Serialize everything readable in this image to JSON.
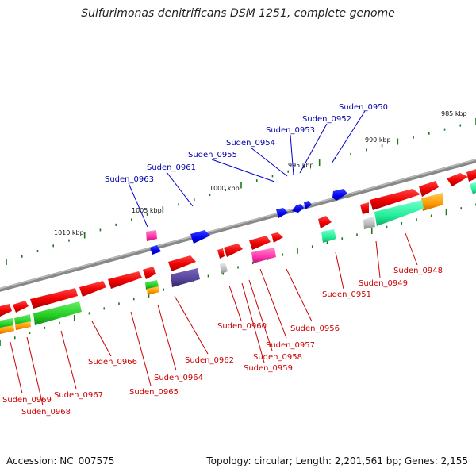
{
  "title": "Sulfurimonas denitrificans DSM 1251, complete genome",
  "footer": {
    "accession": "Accession: NC_007575",
    "summary": "Topology: circular; Length: 2,201,561 bp; Genes: 2,155"
  },
  "scale_labels": [
    "985 kbp",
    "990 kbp",
    "995 kbp",
    "1000 kbp",
    "1005 kbp",
    "1010 kbp"
  ],
  "top_gene_labels": [
    "Suden_0950",
    "Suden_0952",
    "Suden_0953",
    "Suden_0954",
    "Suden_0955",
    "Suden_0961",
    "Suden_0963"
  ],
  "bottom_gene_labels": [
    "Suden_0948",
    "Suden_0949",
    "Suden_0951",
    "Suden_0956",
    "Suden_0957",
    "Suden_0958",
    "Suden_0959",
    "Suden_0960",
    "Suden_0962",
    "Suden_0964",
    "Suden_0965",
    "Suden_0966",
    "Suden_0967",
    "Suden_0968",
    "Suden_0969"
  ],
  "colors": {
    "forward_gene": "#ff0000",
    "blue_gene": "#0000ff",
    "pink_gene": "#ff33aa",
    "magenta_gene": "#ee2299",
    "mint_gene": "#22ee99",
    "green_gene": "#22cc22",
    "orange_gene": "#ff9900",
    "purple_gene": "#554499",
    "grey_gene": "#bbbbbb",
    "backbone": "#888888",
    "tick": "#1a7a1a",
    "label_blue": "#0000aa",
    "label_red": "#cc0000"
  }
}
